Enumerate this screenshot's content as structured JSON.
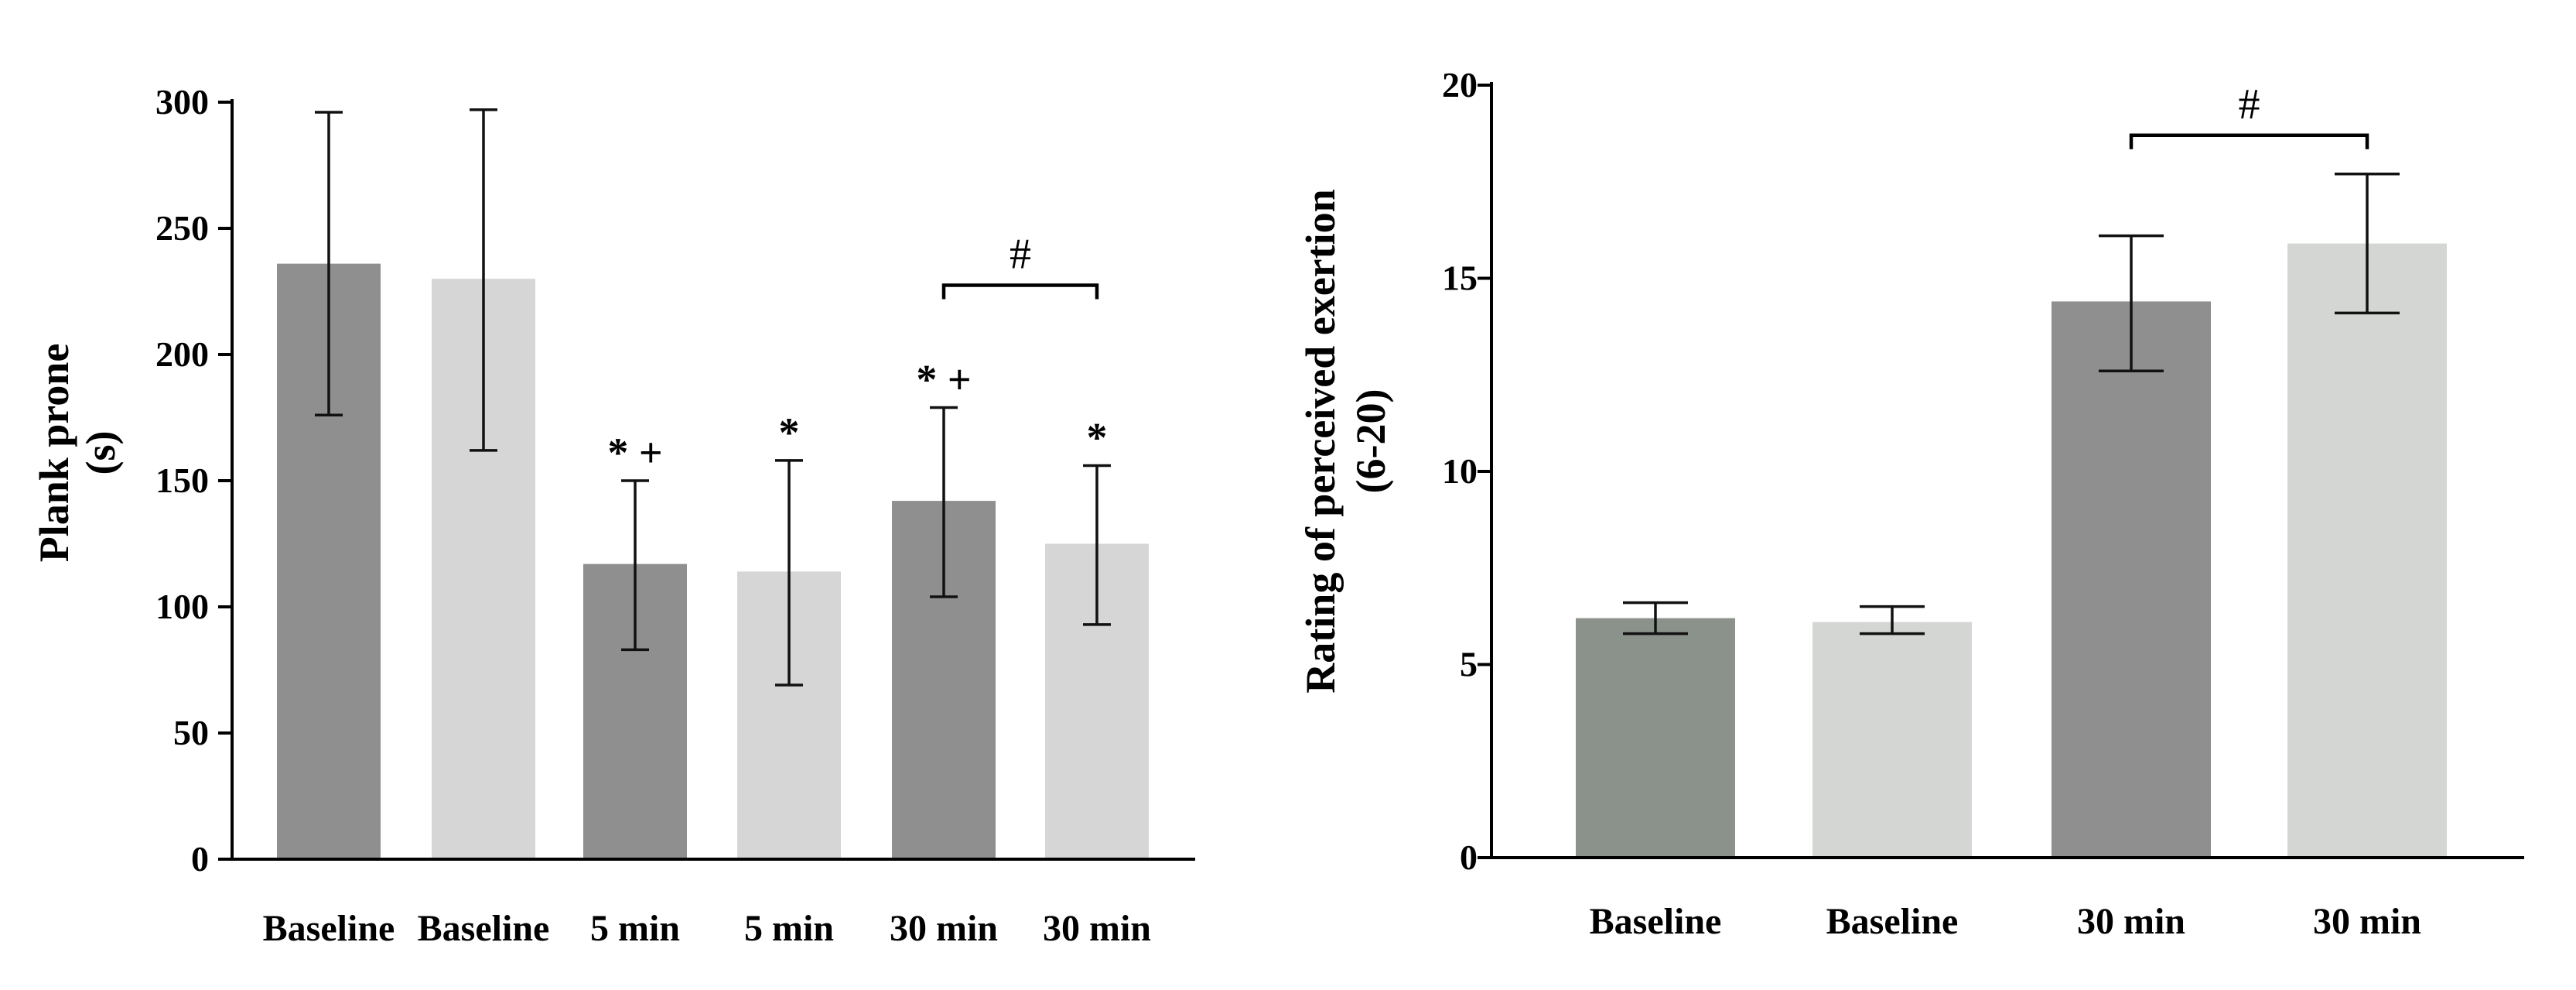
{
  "colors": {
    "dark_gray": "#8f8f8f",
    "light_gray": "#d6d6d6",
    "dark_gray_right": "#8b918b",
    "light_gray_right": "#d3d6d3",
    "axis": "#000000"
  },
  "chart_data": [
    {
      "type": "bar",
      "title": "",
      "xlabel": "",
      "ylabel": "Plank prone",
      "ylabel_unit": "(s)",
      "ylim": [
        0,
        300
      ],
      "yticks": [
        "0",
        "50",
        "100",
        "150",
        "200",
        "250",
        "300"
      ],
      "categories": [
        "Baseline",
        "Baseline",
        "5 min",
        "5 min",
        "30 min",
        "30 min"
      ],
      "values": [
        236,
        230,
        117,
        114,
        142,
        125
      ],
      "error_low": [
        176,
        162,
        83,
        69,
        104,
        93
      ],
      "error_high": [
        296,
        297,
        150,
        158,
        179,
        156
      ],
      "bar_colors": [
        "dark_gray",
        "light_gray",
        "dark_gray",
        "light_gray",
        "dark_gray",
        "light_gray"
      ],
      "annotations": [
        "",
        "",
        "* +",
        "*",
        "* +",
        "*"
      ],
      "bracket": {
        "from": 4,
        "to": 5,
        "label": "#"
      }
    },
    {
      "type": "bar",
      "title": "",
      "xlabel": "",
      "ylabel": "Rating of perceived exertion",
      "ylabel_unit": "(6-20)",
      "ylim": [
        0,
        20
      ],
      "yticks": [
        "0",
        "5",
        "10",
        "15",
        "20"
      ],
      "categories": [
        "Baseline",
        "Baseline",
        "30 min",
        "30 min"
      ],
      "values": [
        6.2,
        6.1,
        14.4,
        15.9
      ],
      "error_low": [
        5.8,
        5.8,
        12.6,
        14.1
      ],
      "error_high": [
        6.6,
        6.5,
        16.1,
        17.7
      ],
      "bar_colors": [
        "dark_gray_right",
        "light_gray_right",
        "dark_gray",
        "light_gray_right"
      ],
      "annotations": [
        "",
        "",
        "",
        ""
      ],
      "bracket": {
        "from": 2,
        "to": 3,
        "label": "#"
      }
    }
  ]
}
